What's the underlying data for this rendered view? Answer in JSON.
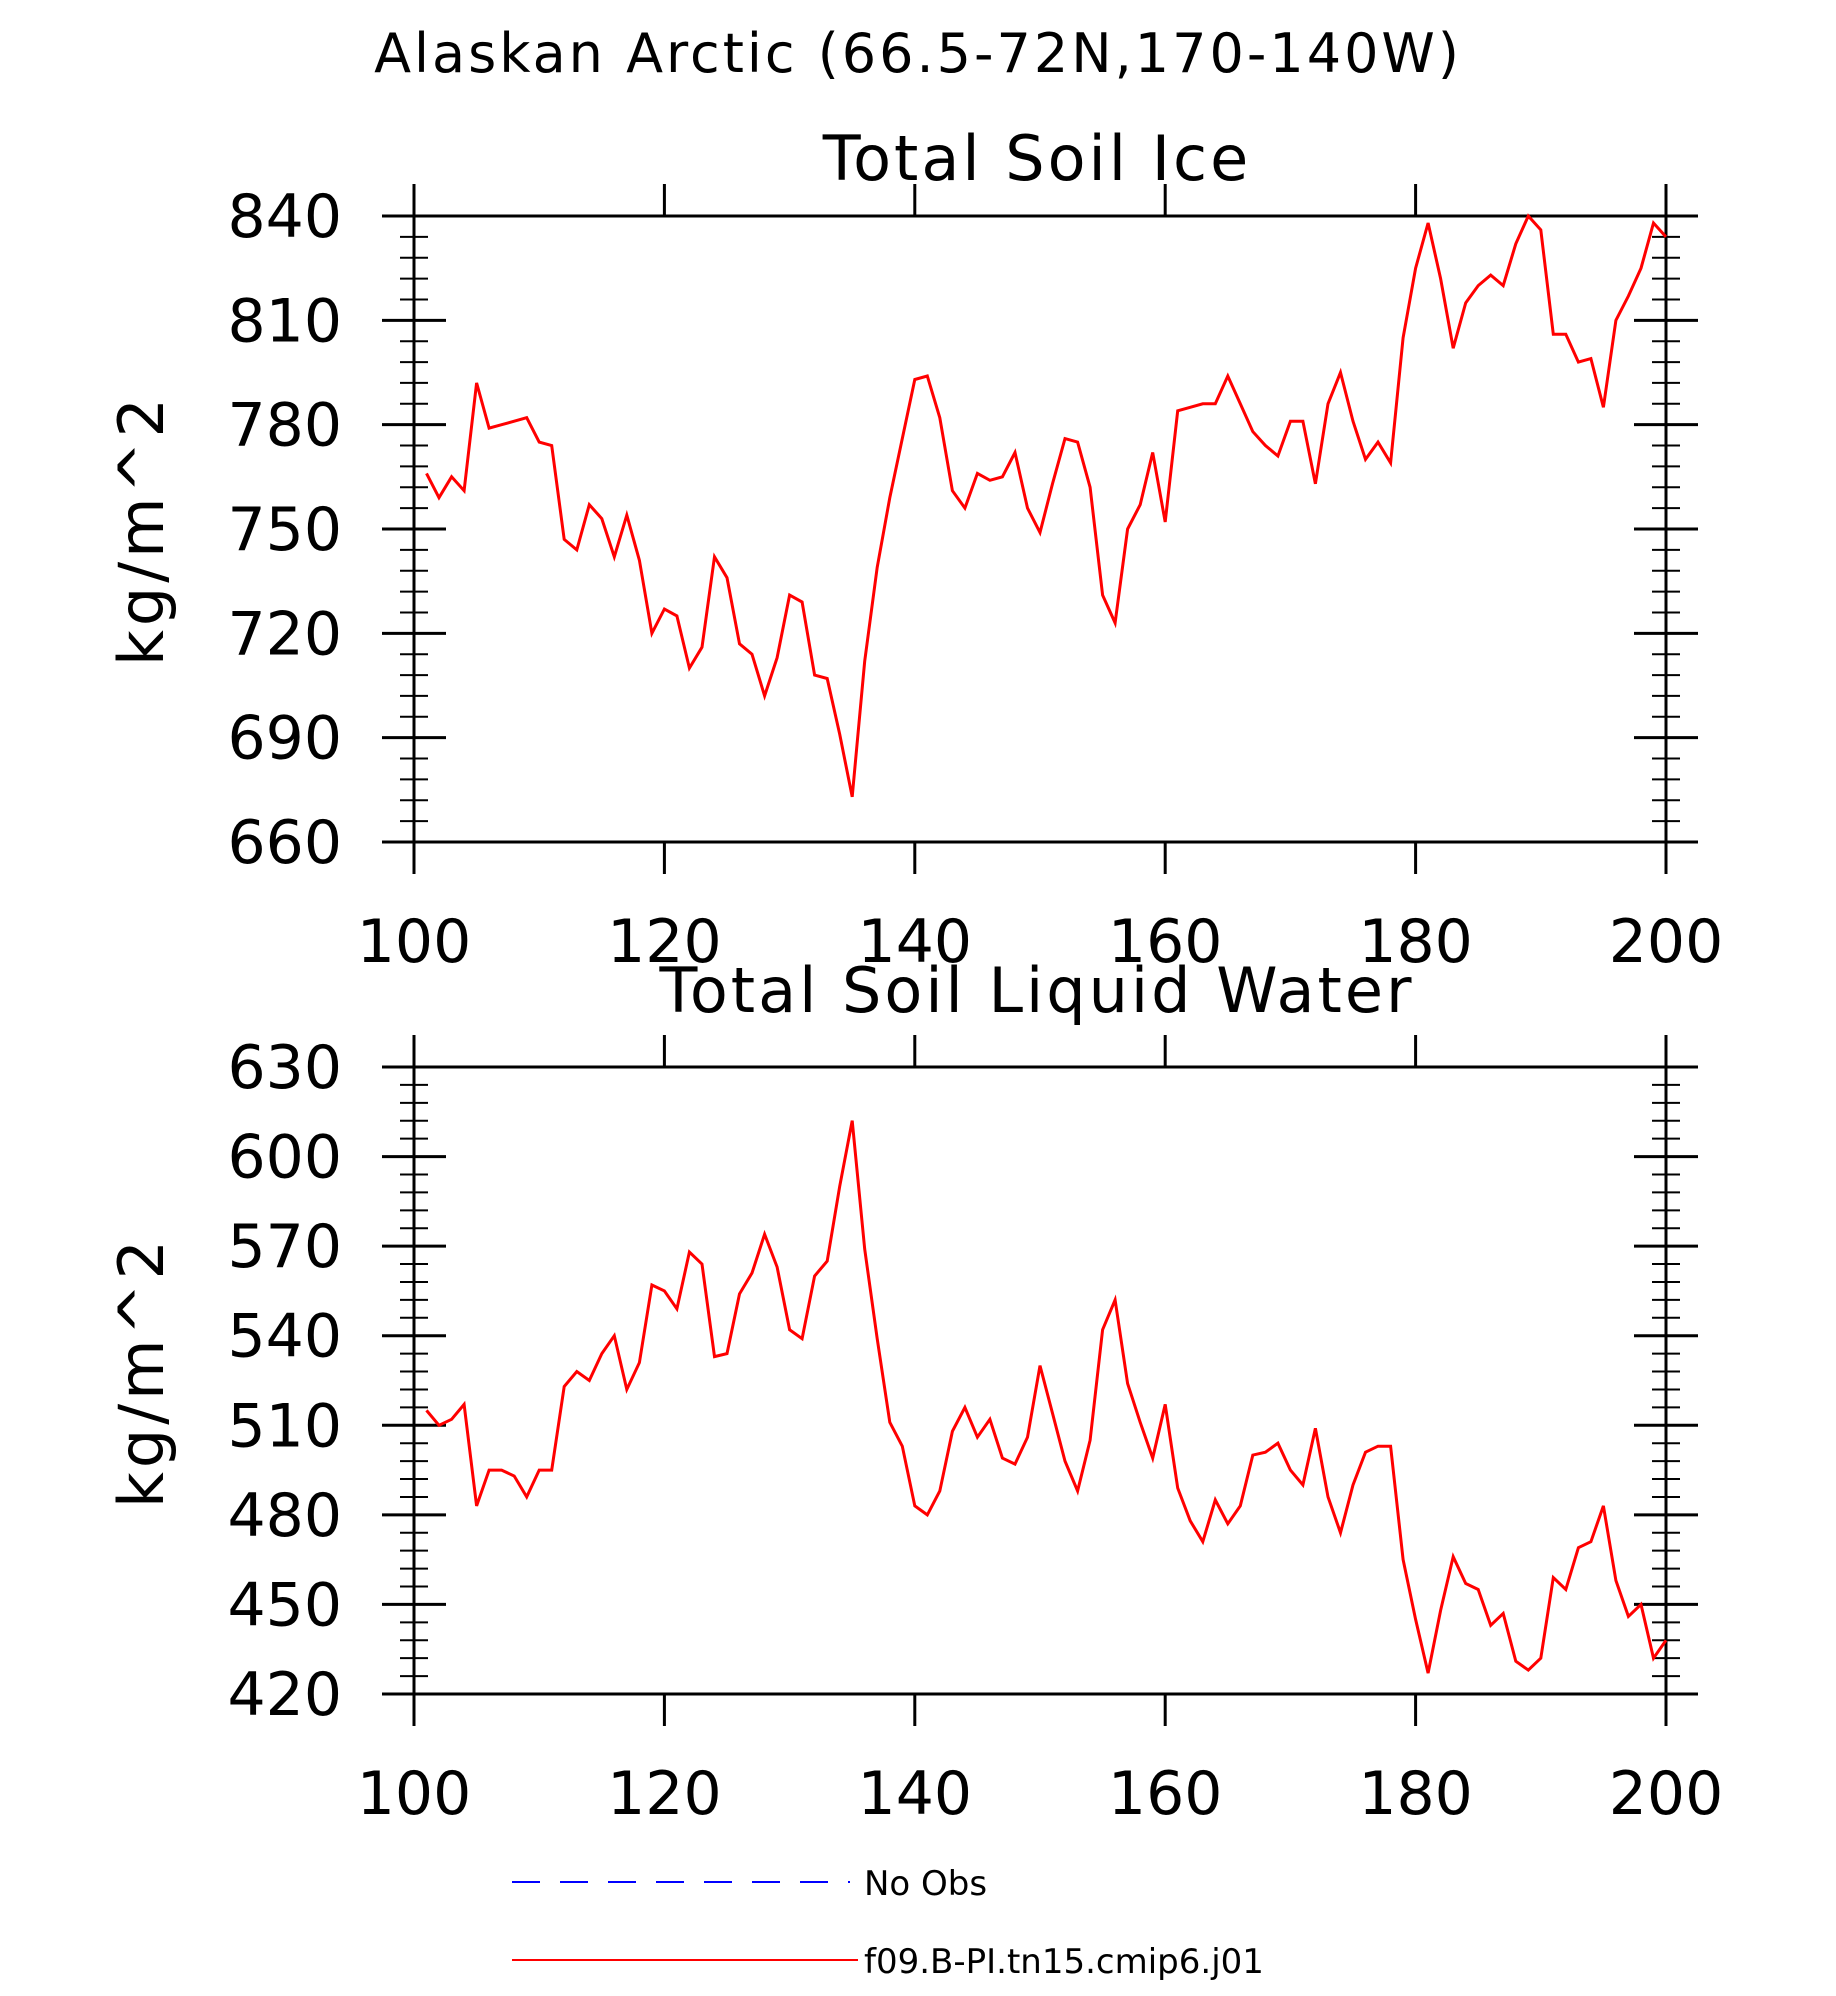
{
  "title": "Alaskan Arctic (66.5-72N,170-140W)",
  "colors": {
    "model": "#ff0000",
    "obs": "#0000ff",
    "axis": "#000000"
  },
  "legend": {
    "items": [
      {
        "label": "No Obs",
        "color": "#0000ff",
        "style": "dashed"
      },
      {
        "label": "f09.B-PI.tn15.cmip6.j01",
        "color": "#ff0000",
        "style": "solid"
      }
    ]
  },
  "chart_data": [
    {
      "type": "line",
      "title": "Total Soil Ice",
      "xlabel": "",
      "ylabel": "kg/m^2",
      "xlim": [
        100,
        200
      ],
      "ylim": [
        660,
        840
      ],
      "xticks": [
        100,
        120,
        140,
        160,
        180,
        200
      ],
      "yticks": [
        660,
        690,
        720,
        750,
        780,
        810,
        840
      ],
      "series": [
        {
          "name": "f09.B-PI.tn15.cmip6.j01",
          "x": [
            101,
            102,
            103,
            104,
            105,
            106,
            107,
            108,
            109,
            110,
            111,
            112,
            113,
            114,
            115,
            116,
            117,
            118,
            119,
            120,
            121,
            122,
            123,
            124,
            125,
            126,
            127,
            128,
            129,
            130,
            131,
            132,
            133,
            134,
            135,
            136,
            137,
            138,
            139,
            140,
            141,
            142,
            143,
            144,
            145,
            146,
            147,
            148,
            149,
            150,
            151,
            152,
            153,
            154,
            155,
            156,
            157,
            158,
            159,
            160,
            161,
            162,
            163,
            164,
            165,
            166,
            167,
            168,
            169,
            170,
            171,
            172,
            173,
            174,
            175,
            176,
            177,
            178,
            179,
            180,
            181,
            182,
            183,
            184,
            185,
            186,
            187,
            188,
            189,
            190,
            191,
            192,
            193,
            194,
            195,
            196,
            197,
            198,
            199,
            200
          ],
          "y": [
            766,
            759,
            765,
            761,
            792,
            779,
            780,
            781,
            782,
            775,
            774,
            747,
            744,
            757,
            753,
            742,
            754,
            741,
            720,
            727,
            725,
            710,
            716,
            742,
            736,
            717,
            714,
            702,
            713,
            731,
            729,
            708,
            707,
            691,
            673,
            712,
            739,
            759,
            776,
            793,
            794,
            782,
            761,
            756,
            766,
            764,
            765,
            772,
            756,
            749,
            763,
            776,
            775,
            762,
            731,
            723,
            750,
            757,
            772,
            752,
            784,
            785,
            786,
            786,
            794,
            786,
            778,
            774,
            771,
            781,
            781,
            763,
            786,
            795,
            781,
            770,
            775,
            769,
            805,
            825,
            838,
            822,
            802,
            815,
            820,
            823,
            820,
            832,
            840,
            836,
            806,
            806,
            798,
            799,
            785,
            810,
            817,
            825,
            838,
            834
          ]
        }
      ]
    },
    {
      "type": "line",
      "title": "Total Soil Liquid Water",
      "xlabel": "",
      "ylabel": "kg/m^2",
      "xlim": [
        100,
        200
      ],
      "ylim": [
        420,
        630
      ],
      "xticks": [
        100,
        120,
        140,
        160,
        180,
        200
      ],
      "yticks": [
        420,
        450,
        480,
        510,
        540,
        570,
        600,
        630
      ],
      "series": [
        {
          "name": "f09.B-PI.tn15.cmip6.j01",
          "x": [
            101,
            102,
            103,
            104,
            105,
            106,
            107,
            108,
            109,
            110,
            111,
            112,
            113,
            114,
            115,
            116,
            117,
            118,
            119,
            120,
            121,
            122,
            123,
            124,
            125,
            126,
            127,
            128,
            129,
            130,
            131,
            132,
            133,
            134,
            135,
            136,
            137,
            138,
            139,
            140,
            141,
            142,
            143,
            144,
            145,
            146,
            147,
            148,
            149,
            150,
            151,
            152,
            153,
            154,
            155,
            156,
            157,
            158,
            159,
            160,
            161,
            162,
            163,
            164,
            165,
            166,
            167,
            168,
            169,
            170,
            171,
            172,
            173,
            174,
            175,
            176,
            177,
            178,
            179,
            180,
            181,
            182,
            183,
            184,
            185,
            186,
            187,
            188,
            189,
            190,
            191,
            192,
            193,
            194,
            195,
            196,
            197,
            198,
            199,
            200
          ],
          "y": [
            515,
            510,
            512,
            517,
            483,
            495,
            495,
            493,
            486,
            495,
            495,
            523,
            528,
            525,
            534,
            540,
            522,
            531,
            557,
            555,
            549,
            568,
            564,
            533,
            534,
            554,
            561,
            574,
            563,
            542,
            539,
            560,
            565,
            590,
            612,
            569,
            539,
            511,
            503,
            483,
            480,
            488,
            508,
            516,
            506,
            512,
            499,
            497,
            506,
            530,
            514,
            498,
            488,
            505,
            542,
            552,
            524,
            511,
            499,
            517,
            489,
            478,
            471,
            485,
            477,
            483,
            500,
            501,
            504,
            495,
            490,
            509,
            486,
            474,
            490,
            501,
            503,
            503,
            465,
            445,
            427,
            448,
            466,
            457,
            455,
            443,
            447,
            431,
            428,
            432,
            459,
            455,
            469,
            471,
            483,
            458,
            446,
            450,
            432,
            438
          ]
        }
      ]
    }
  ]
}
